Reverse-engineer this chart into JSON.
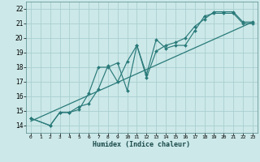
{
  "title": "",
  "xlabel": "Humidex (Indice chaleur)",
  "xlim": [
    -0.5,
    23.5
  ],
  "ylim": [
    13.5,
    22.5
  ],
  "xticks": [
    0,
    1,
    2,
    3,
    4,
    5,
    6,
    7,
    8,
    9,
    10,
    11,
    12,
    13,
    14,
    15,
    16,
    17,
    18,
    19,
    20,
    21,
    22,
    23
  ],
  "yticks": [
    14,
    15,
    16,
    17,
    18,
    19,
    20,
    21,
    22
  ],
  "bg_color": "#cce8e8",
  "line_color": "#2a7a7a",
  "grid_color": "#aacfcf",
  "series1_x": [
    0,
    2,
    3,
    4,
    5,
    6,
    7,
    8,
    9,
    10,
    11,
    12,
    13,
    14,
    15,
    16,
    17,
    18,
    19,
    20,
    21,
    22,
    23
  ],
  "series1_y": [
    14.5,
    14.0,
    14.9,
    14.9,
    15.1,
    16.2,
    18.0,
    18.0,
    18.3,
    16.4,
    19.5,
    17.5,
    19.9,
    19.3,
    19.5,
    19.5,
    20.5,
    21.5,
    21.7,
    21.7,
    21.7,
    21.0,
    21.0
  ],
  "series2_x": [
    0,
    2,
    3,
    4,
    5,
    6,
    7,
    8,
    9,
    10,
    11,
    12,
    13,
    14,
    15,
    16,
    17,
    18,
    19,
    20,
    21,
    22,
    23
  ],
  "series2_y": [
    14.5,
    14.0,
    14.9,
    14.9,
    15.3,
    15.5,
    16.5,
    18.1,
    17.0,
    18.4,
    19.5,
    17.3,
    19.1,
    19.5,
    19.7,
    20.0,
    20.8,
    21.3,
    21.8,
    21.8,
    21.8,
    21.1,
    21.1
  ],
  "trend_x": [
    0,
    23
  ],
  "trend_y": [
    14.3,
    21.1
  ]
}
